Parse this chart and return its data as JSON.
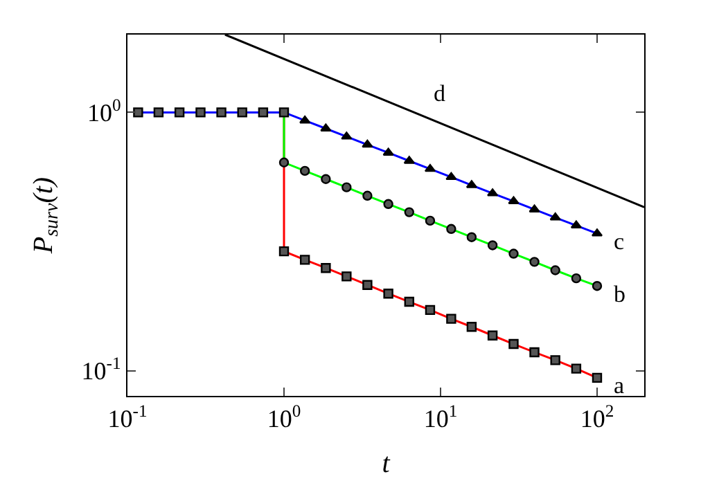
{
  "chart_data": {
    "type": "line",
    "xlabel": "t",
    "ylabel": "P$_{surv}$(t)",
    "log": "xy",
    "grid": false,
    "line_style": "solid",
    "xlim": [
      0.1,
      200
    ],
    "ylim": [
      0.08,
      2
    ],
    "xticks": [
      {
        "value": 0.1,
        "label": "10$^{-1}$"
      },
      {
        "value": 1,
        "label": "10$^{0}$"
      },
      {
        "value": 10,
        "label": "10$^{1}$"
      },
      {
        "value": 100,
        "label": "10$^{2}$"
      }
    ],
    "yticks": [
      {
        "value": 0.1,
        "label": "10$^{-1}$"
      },
      {
        "value": 1,
        "label": "10$^{0}$"
      }
    ],
    "series": [
      {
        "name": "a",
        "color": "#ff0000",
        "marker": "square",
        "x": [
          1,
          1,
          1.36,
          1.85,
          2.51,
          3.41,
          4.64,
          6.31,
          8.58,
          11.7,
          15.8,
          21.5,
          29.3,
          39.8,
          54.1,
          73.6,
          100
        ],
        "values": [
          1,
          0.29,
          0.269,
          0.25,
          0.232,
          0.215,
          0.199,
          0.185,
          0.172,
          0.159,
          0.148,
          0.137,
          0.127,
          0.118,
          0.11,
          0.102,
          0.094
        ]
      },
      {
        "name": "b",
        "color": "#00ff00",
        "marker": "circle",
        "x": [
          1,
          1,
          1.36,
          1.85,
          2.51,
          3.41,
          4.64,
          6.31,
          8.58,
          11.7,
          15.8,
          21.5,
          29.3,
          39.8,
          54.1,
          73.6,
          100
        ],
        "values": [
          1,
          0.64,
          0.594,
          0.552,
          0.513,
          0.476,
          0.442,
          0.411,
          0.381,
          0.354,
          0.329,
          0.306,
          0.284,
          0.264,
          0.245,
          0.228,
          0.213
        ]
      },
      {
        "name": "c",
        "color": "#0000ff",
        "marker": "triangle",
        "x": [
          1,
          1.36,
          1.85,
          2.51,
          3.41,
          4.64,
          6.31,
          8.58,
          11.7,
          15.8,
          21.5,
          29.3,
          39.8,
          54.1,
          73.6,
          100
        ],
        "values": [
          1,
          0.93,
          0.866,
          0.806,
          0.75,
          0.698,
          0.649,
          0.604,
          0.562,
          0.523,
          0.486,
          0.453,
          0.421,
          0.392,
          0.365,
          0.34
        ]
      },
      {
        "color": "#0000ff",
        "marker": "square",
        "x": [
          0.117,
          0.158,
          0.215,
          0.293,
          0.398,
          0.541,
          0.736,
          1
        ],
        "values": [
          1,
          1,
          1,
          1,
          1,
          1,
          1,
          1
        ]
      },
      {
        "name": "d",
        "color": "#000000",
        "marker": "none",
        "x": [
          0.42,
          200
        ],
        "values": [
          2,
          0.43
        ]
      }
    ]
  }
}
